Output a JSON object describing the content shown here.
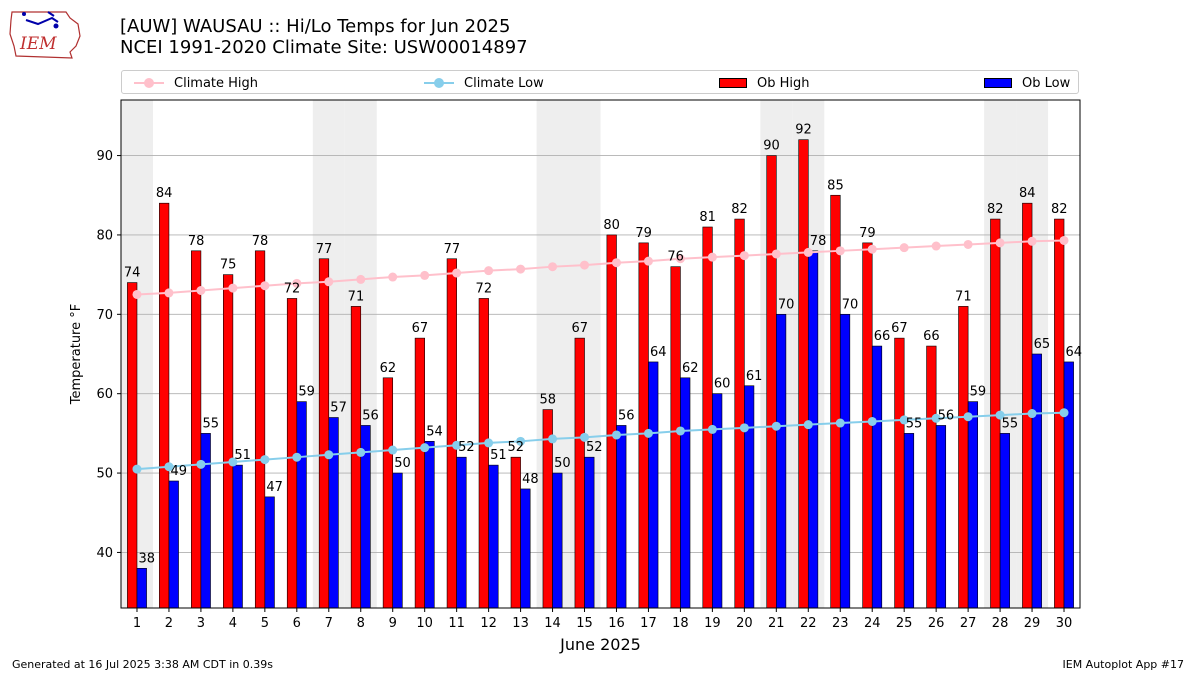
{
  "header": {
    "title_line1": "[AUW] WAUSAU :: Hi/Lo Temps for Jun 2025",
    "title_line2": "NCEI 1991-2020 Climate Site: USW00014897",
    "logo_text": "IEM"
  },
  "legend": {
    "climate_high": "Climate High",
    "climate_low": "Climate Low",
    "ob_high": "Ob High",
    "ob_low": "Ob Low"
  },
  "colors": {
    "ob_high": "#ff0000",
    "ob_low": "#0000ff",
    "climate_high": "#ffc0cb",
    "climate_low": "#87ceeb",
    "weekend_shade": "#eeeeee",
    "grid": "#b0b0b0"
  },
  "footer": {
    "left": "Generated at 16 Jul 2025 3:38 AM CDT in 0.39s",
    "right": "IEM Autoplot App #17"
  },
  "chart_data": {
    "type": "bar",
    "xlabel": "June 2025",
    "ylabel": "Temperature °F",
    "ylim": [
      33,
      97
    ],
    "yticks": [
      40,
      50,
      60,
      70,
      80,
      90
    ],
    "grid": true,
    "legend_position": "top",
    "categories": [
      "1",
      "2",
      "3",
      "4",
      "5",
      "6",
      "7",
      "8",
      "9",
      "10",
      "11",
      "12",
      "13",
      "14",
      "15",
      "16",
      "17",
      "18",
      "19",
      "20",
      "21",
      "22",
      "23",
      "24",
      "25",
      "26",
      "27",
      "28",
      "29",
      "30"
    ],
    "shaded_days": [
      "1",
      "7",
      "8",
      "14",
      "15",
      "21",
      "22",
      "28",
      "29"
    ],
    "series": [
      {
        "name": "Ob High",
        "type": "bar",
        "values": [
          74,
          84,
          78,
          75,
          78,
          72,
          77,
          71,
          62,
          67,
          77,
          72,
          52,
          58,
          67,
          80,
          79,
          76,
          81,
          82,
          90,
          92,
          85,
          79,
          67,
          66,
          71,
          82,
          84,
          82
        ]
      },
      {
        "name": "Ob Low",
        "type": "bar",
        "values": [
          38,
          49,
          55,
          51,
          47,
          59,
          57,
          56,
          50,
          54,
          52,
          51,
          48,
          50,
          52,
          56,
          64,
          62,
          60,
          61,
          70,
          78,
          70,
          66,
          55,
          56,
          59,
          55,
          65,
          64
        ]
      },
      {
        "name": "Climate High",
        "type": "line",
        "values": [
          72.5,
          72.7,
          73.0,
          73.3,
          73.6,
          73.9,
          74.1,
          74.4,
          74.7,
          74.9,
          75.2,
          75.5,
          75.7,
          76.0,
          76.2,
          76.5,
          76.7,
          77.0,
          77.2,
          77.4,
          77.6,
          77.8,
          78.0,
          78.2,
          78.4,
          78.6,
          78.8,
          79.0,
          79.2,
          79.3
        ]
      },
      {
        "name": "Climate Low",
        "type": "line",
        "values": [
          50.5,
          50.8,
          51.1,
          51.4,
          51.7,
          52.0,
          52.3,
          52.6,
          52.9,
          53.2,
          53.5,
          53.8,
          54.0,
          54.3,
          54.5,
          54.8,
          55.0,
          55.3,
          55.5,
          55.7,
          55.9,
          56.1,
          56.3,
          56.5,
          56.7,
          56.9,
          57.1,
          57.3,
          57.5,
          57.6
        ]
      }
    ]
  }
}
